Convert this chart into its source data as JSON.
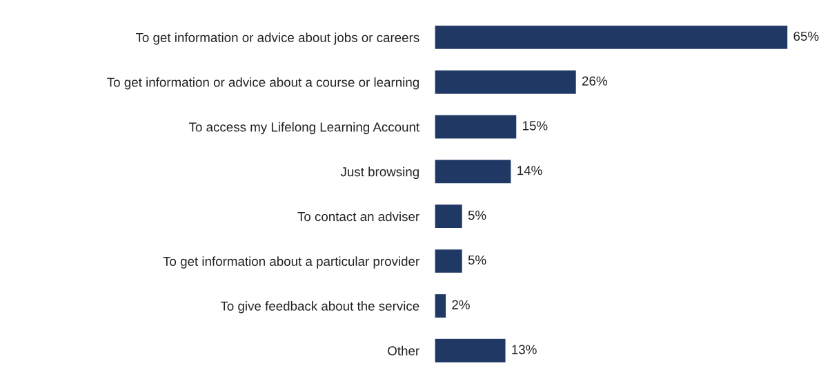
{
  "chart_data": {
    "type": "bar",
    "orientation": "horizontal",
    "categories": [
      "To get information or advice about jobs or careers",
      "To get information or advice about a course or learning",
      "To access my Lifelong Learning Account",
      "Just browsing",
      "To contact an adviser",
      "To get information about a particular provider",
      "To give feedback about the service",
      "Other"
    ],
    "values": [
      65,
      26,
      15,
      14,
      5,
      5,
      2,
      13
    ],
    "value_labels": [
      "65%",
      "26%",
      "15%",
      "14%",
      "5%",
      "5%",
      "2%",
      "13%"
    ],
    "color": "#1f3864",
    "grid": false,
    "legend": false
  }
}
